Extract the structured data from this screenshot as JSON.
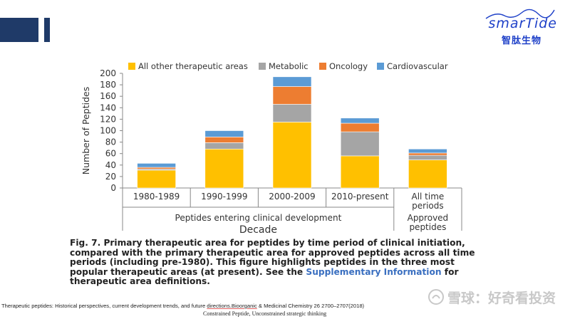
{
  "header": {
    "logo": {
      "wordmark": "smarTide",
      "chinese": "智肽生物"
    }
  },
  "chart_data": {
    "type": "bar",
    "stacked": true,
    "categories": [
      "1980-1989",
      "1990-1999",
      "2000-2009",
      "2010-present",
      "All time periods"
    ],
    "category_lines": [
      [
        "1980-1989"
      ],
      [
        "1990-1999"
      ],
      [
        "2000-2009"
      ],
      [
        "2010-present"
      ],
      [
        "All time",
        "periods"
      ]
    ],
    "series": [
      {
        "name": "All other therapeutic areas",
        "color": "#ffc000",
        "values": [
          31,
          68,
          115,
          56,
          49
        ]
      },
      {
        "name": "Metabolic",
        "color": "#a5a5a5",
        "values": [
          2,
          11,
          31,
          42,
          8
        ]
      },
      {
        "name": "Oncology",
        "color": "#ed7d31",
        "values": [
          3,
          10,
          31,
          15,
          4
        ]
      },
      {
        "name": "Cardiovascular",
        "color": "#5b9bd5",
        "values": [
          7,
          11,
          17,
          9,
          7
        ]
      }
    ],
    "ylabel": "Number of Peptides",
    "ylim": [
      0,
      200
    ],
    "yticks": [
      0,
      20,
      40,
      60,
      80,
      100,
      120,
      140,
      160,
      180,
      200
    ],
    "group_labels": [
      {
        "text": [
          "Peptides entering clinical development"
        ],
        "span": [
          0,
          3
        ]
      },
      {
        "text": [
          "Approved",
          "peptides"
        ],
        "span": [
          4,
          4
        ]
      }
    ],
    "xlabel": "Decade",
    "legend_position": "top",
    "grid": false
  },
  "caption": {
    "label": "Fig. 7.",
    "text_before_link": " Primary therapeutic area for peptides by time period of clinical initiation, compared with the primary therapeutic area for approved peptides across all time periods (including pre-1980). This figure highlights peptides in the three most popular therapeutic areas (at present). See the ",
    "link": "Supplementary Information",
    "text_after_link": " for therapeutic area definitions."
  },
  "source": {
    "before": "Therapeutic peptides: Historical perspectives, current development trends, and future ",
    "underlined": "directions.Bioorganic",
    "after": " & Medicinal Chemistry 26 2700–2707(2018)",
    "sub": "Constrained  Peptide,  Unconstrained  strategic  thinking"
  },
  "watermark": {
    "text": "雪球：好奇看投资"
  }
}
